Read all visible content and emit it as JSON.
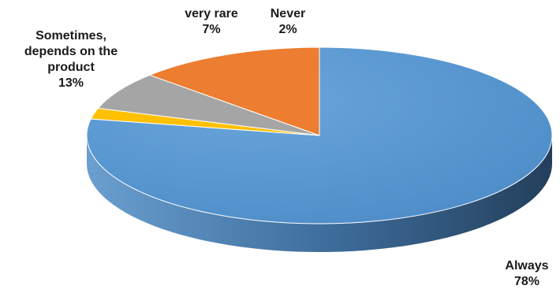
{
  "chart_data": {
    "type": "pie",
    "title": "",
    "style": "3d",
    "slices": [
      {
        "label": "Always",
        "value": 78,
        "value_label": "78%",
        "color": "#5b9bd5"
      },
      {
        "label": "Never",
        "value": 2,
        "value_label": "2%",
        "color": "#ffc000"
      },
      {
        "label": "very rare",
        "value": 7,
        "value_label": "7%",
        "color": "#a5a5a5"
      },
      {
        "label": "Sometimes, depends on the product",
        "value": 13,
        "value_label": "13%",
        "color": "#ed7d31"
      }
    ],
    "side_color": "#41719c"
  }
}
